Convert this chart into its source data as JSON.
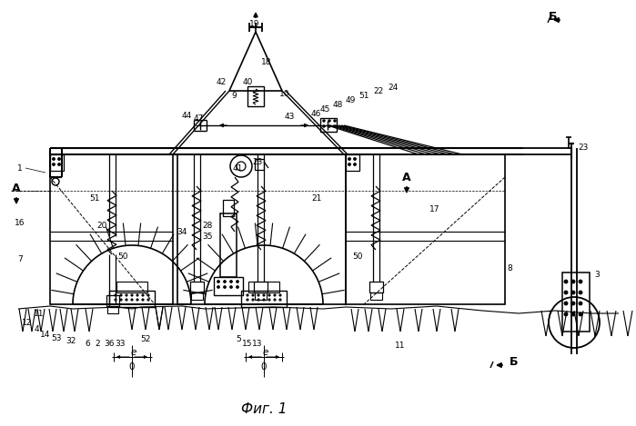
{
  "bg_color": "#ffffff",
  "line_color": "#000000",
  "fig_width": 6.99,
  "fig_height": 4.69,
  "title": "Фиг. 1",
  "section_label_A": "A",
  "section_label_B": "Б"
}
